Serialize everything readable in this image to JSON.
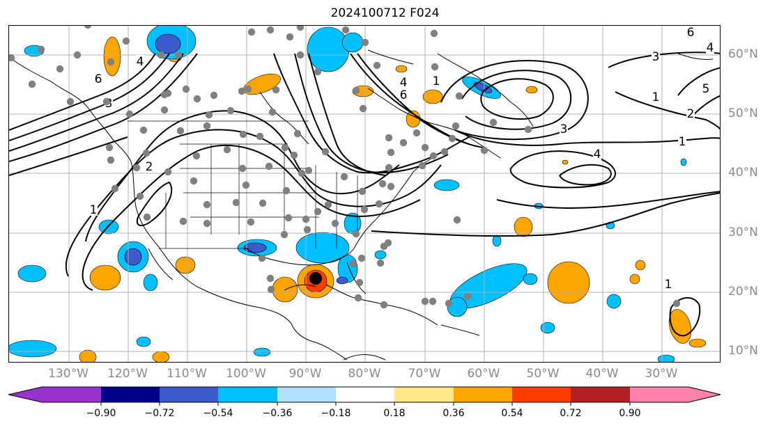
{
  "title": "2024100712 F024",
  "map": {
    "lon_labels": [
      "130°W",
      "120°W",
      "110°W",
      "100°W",
      "90°W",
      "80°W",
      "70°W",
      "60°W",
      "50°W",
      "40°W",
      "30°W"
    ],
    "lat_labels": [
      "60°N",
      "50°N",
      "40°N",
      "30°N",
      "20°N",
      "10°N"
    ],
    "contour_labels": [
      "4",
      "6",
      "3",
      "1",
      "2",
      "3",
      "4",
      "1",
      "1",
      "2",
      "5",
      "4",
      "3",
      "1",
      "4",
      "3",
      "1",
      "6",
      "6"
    ],
    "fill_colors": {
      "strong_pos": "#ff3c00",
      "pos": "#ffa500",
      "neg": "#00bfff",
      "strong_neg": "#3d5ccc",
      "very_neg": "#8a2be2",
      "marker": "#000000",
      "dots": "#808080"
    },
    "icons": {
      "storm_center": "filled-circle-marker"
    }
  },
  "colorbar": {
    "colors": [
      "#9932cc",
      "#00008b",
      "#3a5bcc",
      "#00bfff",
      "#b0e0ff",
      "#ffffff",
      "#ffe88a",
      "#ffa500",
      "#ff3c00",
      "#b22222",
      "#ff82ab"
    ],
    "tick_labels": [
      "−0.90",
      "−0.72",
      "−0.54",
      "−0.36",
      "−0.18",
      "0.18",
      "0.36",
      "0.54",
      "0.72",
      "0.90"
    ]
  }
}
